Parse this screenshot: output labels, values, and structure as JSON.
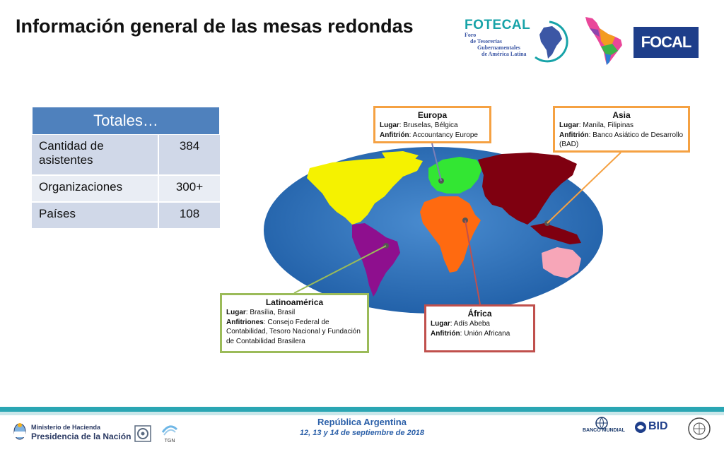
{
  "title": "Información general de las mesas redondas",
  "logos": {
    "fotecal_name": "FOTECAL",
    "fotecal_sub": [
      "Foro",
      "de Tesorerías",
      "Gubernamentales",
      "de América Latina"
    ],
    "focal": "FOCAL",
    "tgn": "TGN",
    "banco_mundial": "BANCO MUNDIAL",
    "bid": "BID",
    "ministerio_line1": "Ministerio de Hacienda",
    "ministerio_line2": "Presidencia de la Nación"
  },
  "totals": {
    "header": "Totales…",
    "rows": [
      {
        "label": "Cantidad de asistentes",
        "value": "384"
      },
      {
        "label": "Organizaciones",
        "value": "300+"
      },
      {
        "label": "Países",
        "value": "108"
      }
    ]
  },
  "regions": {
    "europa": {
      "title": "Europa",
      "lugar_label": "Lugar",
      "lugar": "Bruselas, Bélgica",
      "anfitrion_label": "Anfitrión",
      "anfitrion": "Accountancy Europe"
    },
    "asia": {
      "title": "Asia",
      "lugar_label": "Lugar",
      "lugar": "Manila, Filipinas",
      "anfitrion_label": "Anfitrión",
      "anfitrion": "Banco Asiático de Desarrollo (BAD)"
    },
    "latam": {
      "title": "Latinoamérica",
      "lugar_label": "Lugar",
      "lugar": "Brasília, Brasil",
      "anfitrion_label": "Anfitriones",
      "anfitrion": "Consejo Federal de Contabilidad, Tesoro Nacional y Fundación de Contabilidad Brasilera"
    },
    "africa": {
      "title": "África",
      "lugar_label": "Lugar",
      "lugar": "Adís Abeba",
      "anfitrion_label": "Anfitrión",
      "anfitrion": "Unión Africana"
    }
  },
  "footer": {
    "country": "República Argentina",
    "dates": "12, 13 y 14 de septiembre de 2018"
  },
  "colors": {
    "table_header": "#4f81bd",
    "ocean": "#2f6db5",
    "north_america": "#f5f200",
    "latin_america": "#8e0f8e",
    "europe": "#33e633",
    "africa": "#ff6a10",
    "asia": "#7f0010",
    "oceania": "#f7a6b8",
    "footer_bar": "#2aa6b3"
  }
}
